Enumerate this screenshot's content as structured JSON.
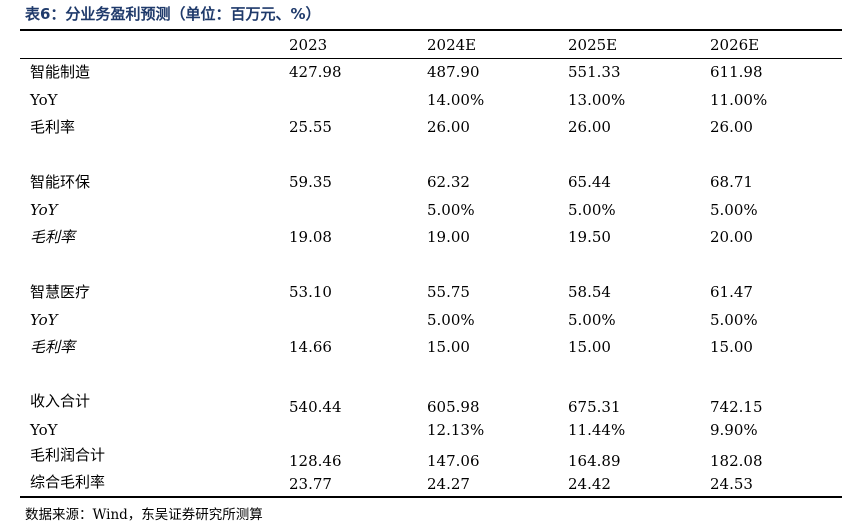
{
  "title": "表6：分业务盈利预测（单位：百万元、%）",
  "header": [
    "2023",
    "2024E",
    "2025E",
    "2026E"
  ],
  "rows": [
    {
      "label": "智能制造",
      "values": [
        "427.98",
        "487.90",
        "551.33",
        "611.98"
      ]
    },
    {
      "label": "YoY",
      "values": [
        "",
        "14.00%",
        "13.00%",
        "11.00%"
      ]
    },
    {
      "label": "毛利率",
      "values": [
        "25.55",
        "26.00",
        "26.00",
        "26.00"
      ]
    },
    {
      "label": "智能环保",
      "values": [
        "59.35",
        "62.32",
        "65.44",
        "68.71"
      ]
    },
    {
      "label": "YoY",
      "values": [
        "",
        "5.00%",
        "5.00%",
        "5.00%"
      ]
    },
    {
      "label": "毛利率",
      "values": [
        "19.08",
        "19.00",
        "19.50",
        "20.00"
      ]
    },
    {
      "label": "智慧医疗",
      "values": [
        "53.10",
        "55.75",
        "58.54",
        "61.47"
      ]
    },
    {
      "label": "YoY",
      "values": [
        "",
        "5.00%",
        "5.00%",
        "5.00%"
      ]
    },
    {
      "label": "毛利率",
      "values": [
        "14.66",
        "15.00",
        "15.00",
        "15.00"
      ]
    },
    {
      "label": "收入合计",
      "values": [
        "540.44",
        "605.98",
        "675.31",
        "742.15"
      ]
    },
    {
      "label": "YoY",
      "values": [
        "",
        "12.13%",
        "11.44%",
        "9.90%"
      ]
    },
    {
      "label": "毛利润合计",
      "values": [
        "128.46",
        "147.06",
        "164.89",
        "182.08"
      ]
    },
    {
      "label": "综合毛利率",
      "values": [
        "23.77",
        "24.27",
        "24.42",
        "24.53"
      ]
    }
  ],
  "source": "数据来源：Wind，东吴证券研究所测算"
}
